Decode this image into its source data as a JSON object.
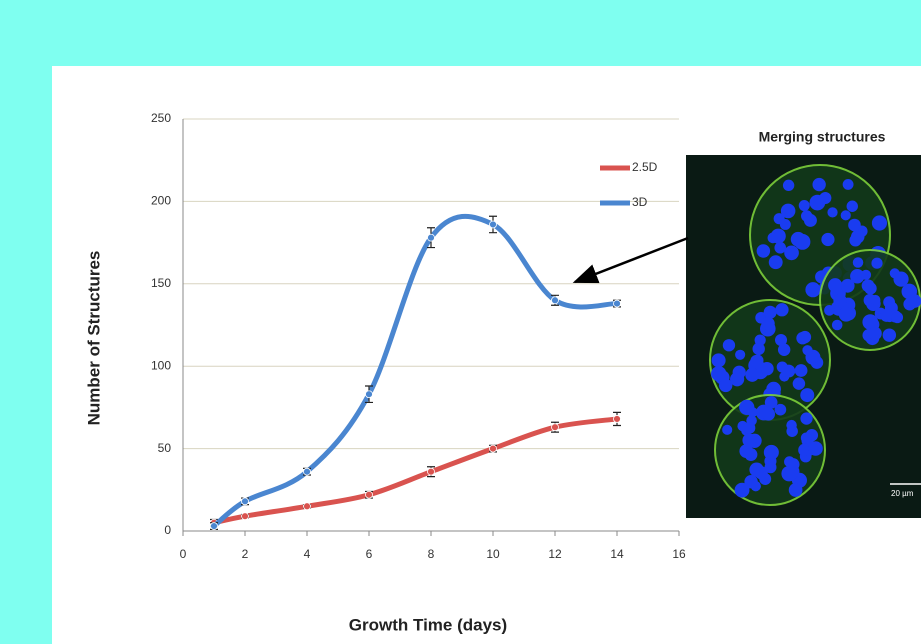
{
  "chart_data": {
    "type": "line",
    "x": [
      1,
      2,
      4,
      6,
      8,
      10,
      12,
      14
    ],
    "series": [
      {
        "name": "2.5D",
        "color": "#d9534f",
        "values": [
          5,
          9,
          15,
          22,
          36,
          50,
          63,
          68
        ],
        "errors": [
          2,
          1,
          1,
          2,
          3,
          2,
          3,
          4
        ]
      },
      {
        "name": "3D",
        "color": "#4a86d0",
        "values": [
          3,
          18,
          36,
          83,
          178,
          186,
          140,
          138
        ],
        "errors": [
          2,
          2,
          2,
          5,
          6,
          5,
          3,
          2
        ]
      }
    ],
    "xlim": [
      0,
      16
    ],
    "xticks": [
      0,
      2,
      4,
      6,
      8,
      10,
      12,
      14,
      16
    ],
    "ylim": [
      0,
      250
    ],
    "yticks": [
      0,
      50,
      100,
      150,
      200,
      250
    ],
    "grid": true,
    "legend": "upper right",
    "xlabel": "Growth Time (days)",
    "ylabel": "Number of Structures",
    "image_title": "Merging structures",
    "scale_bar": "20 µm"
  }
}
